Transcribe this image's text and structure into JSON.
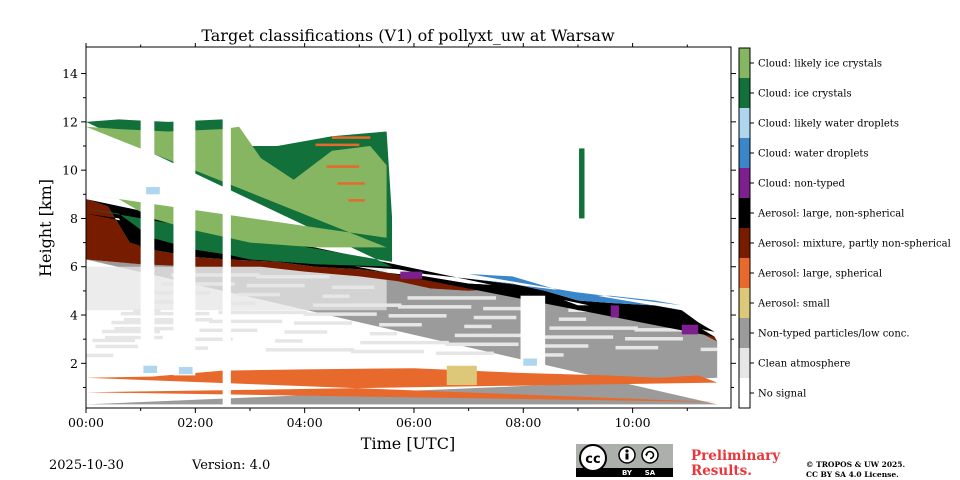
{
  "chart_data": {
    "type": "heatmap",
    "title": "Target classifications (V1) of pollyxt_uw at Warsaw",
    "xlabel": "Time [UTC]",
    "ylabel": "Height [km]",
    "xlim": [
      0,
      11.8
    ],
    "ylim": [
      0.15,
      15.1
    ],
    "x_ticks": [
      {
        "value": 0,
        "label": "00:00"
      },
      {
        "value": 2,
        "label": "02:00"
      },
      {
        "value": 4,
        "label": "04:00"
      },
      {
        "value": 6,
        "label": "06:00"
      },
      {
        "value": 8,
        "label": "08:00"
      },
      {
        "value": 10,
        "label": "10:00"
      }
    ],
    "x_minor_ticks": [
      1,
      3,
      5,
      7,
      9,
      11
    ],
    "y_ticks": [
      2,
      4,
      6,
      8,
      10,
      12,
      14
    ],
    "y_tick_labels": [
      "2",
      "4",
      "6",
      "8",
      "10",
      "12",
      "14"
    ],
    "classes": [
      {
        "name": "No signal",
        "color": "#ffffff"
      },
      {
        "name": "Clean atmosphere",
        "color": "#e6e6e6"
      },
      {
        "name": "Non-typed particles/low conc.",
        "color": "#9b9b9b"
      },
      {
        "name": "Aerosol: small",
        "color": "#dcc878"
      },
      {
        "name": "Aerosol: large, spherical",
        "color": "#e8692c"
      },
      {
        "name": "Aerosol: mixture, partly non-spherical",
        "color": "#781c00"
      },
      {
        "name": "Aerosol: large, non-spherical",
        "color": "#000000"
      },
      {
        "name": "Cloud: non-typed",
        "color": "#7d1f8e"
      },
      {
        "name": "Cloud: water droplets",
        "color": "#3a86c8"
      },
      {
        "name": "Cloud: likely water droplets",
        "color": "#aed6ef"
      },
      {
        "name": "Cloud: ice crystals",
        "color": "#12713a"
      },
      {
        "name": "Cloud: likely ice crystals",
        "color": "#86b661"
      }
    ],
    "date": "2025-10-30",
    "version": "Version: 4.0",
    "preliminary": [
      "Preliminary",
      "Results."
    ],
    "license": [
      "© TROPOS & UW 2025.",
      "CC BY SA 4.0 License."
    ],
    "cc_badge": {
      "cc": "cc",
      "by": "BY",
      "sa": "SA"
    }
  },
  "colors": {
    "no_signal": "#ffffff",
    "clean": "#e6e6e6",
    "non_typed": "#9b9b9b",
    "small": "#dcc878",
    "large_sph": "#e8692c",
    "mixture": "#781c00",
    "large_nonsph": "#000000",
    "cloud_nontyped": "#7d1f8e",
    "water": "#3a86c8",
    "likely_water": "#aed6ef",
    "ice": "#12713a",
    "likely_ice": "#86b661",
    "preliminary": "#e8363a"
  }
}
